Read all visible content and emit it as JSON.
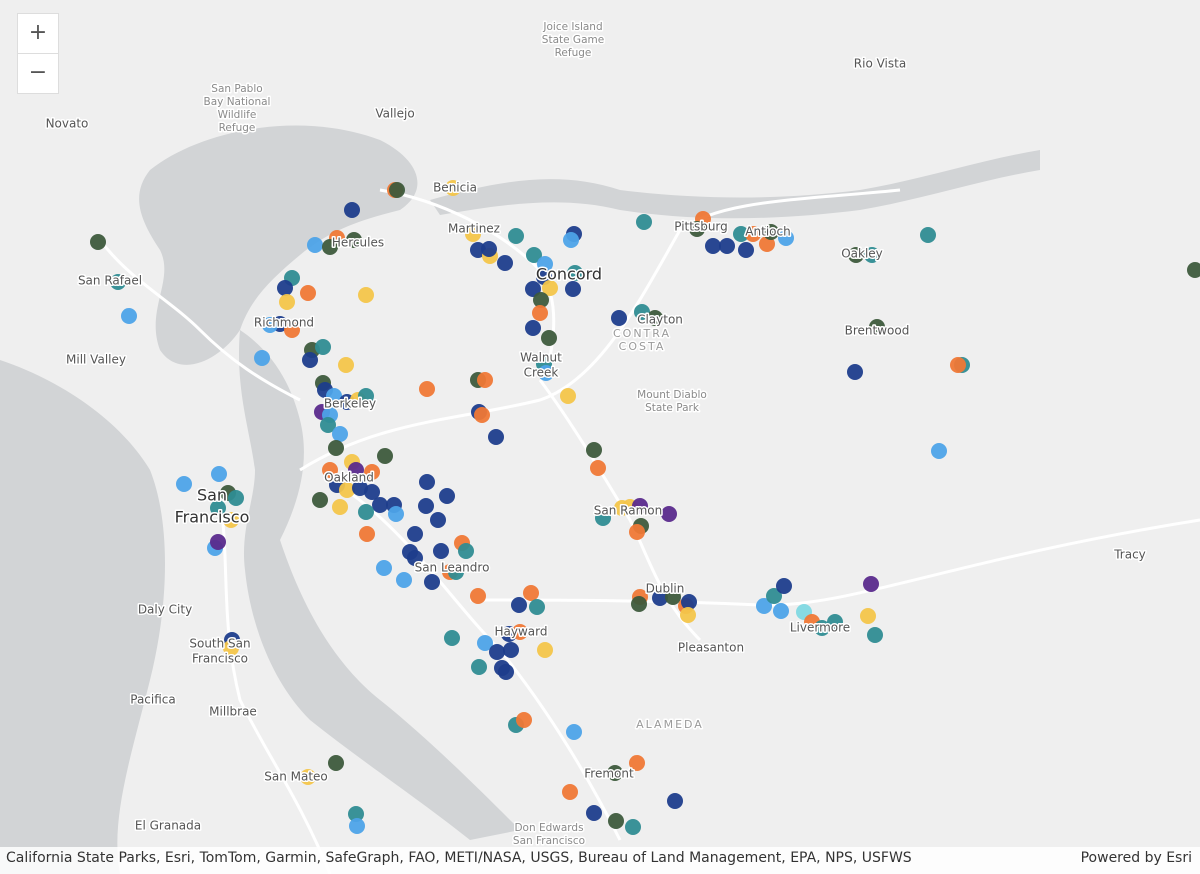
{
  "zoom_in": "+",
  "zoom_out": "−",
  "attribution": "California State Parks, Esri, TomTom, Garmin, SafeGraph, FAO, METI/NASA, USGS, Bureau of Land Management, EPA, NPS, USFWS",
  "powered_by": "Powered by Esri",
  "places": [
    [
      "Novato"
    ],
    [
      "San Pablo",
      "Bay National",
      "Wildlife",
      "Refuge"
    ],
    [
      "Vallejo"
    ],
    [
      "Joice Island",
      "State Game",
      "Refuge"
    ],
    [
      "Rio Vista"
    ],
    [
      "Benicia"
    ],
    [
      "Martinez"
    ],
    [
      "Hercules"
    ],
    [
      "Pittsburg"
    ],
    [
      "Antioch"
    ],
    [
      "Oakley"
    ],
    [
      "Concord"
    ],
    [
      "San Rafael"
    ],
    [
      "Richmond"
    ],
    [
      "Clayton"
    ],
    [
      "CONTRA",
      "COSTA"
    ],
    [
      "Brentwood"
    ],
    [
      "Mill Valley"
    ],
    [
      "Walnut",
      "Creek"
    ],
    [
      "Mount Diablo",
      "State Park"
    ],
    [
      "Berkeley"
    ],
    [
      "Oakland"
    ],
    [
      "San",
      "Francisco"
    ],
    [
      "San Ramon"
    ],
    [
      "Tracy"
    ],
    [
      "San Leandro"
    ],
    [
      "Dublin"
    ],
    [
      "Daly City"
    ],
    [
      "Hayward"
    ],
    [
      "Livermore"
    ],
    [
      "South San",
      "Francisco"
    ],
    [
      "Pleasanton"
    ],
    [
      "Pacifica"
    ],
    [
      "Millbrae"
    ],
    [
      "ALAMEDA"
    ],
    [
      "San Mateo"
    ],
    [
      "Fremont"
    ],
    [
      "El Granada"
    ],
    [
      "Don Edwards",
      "San Francisco"
    ]
  ]
}
